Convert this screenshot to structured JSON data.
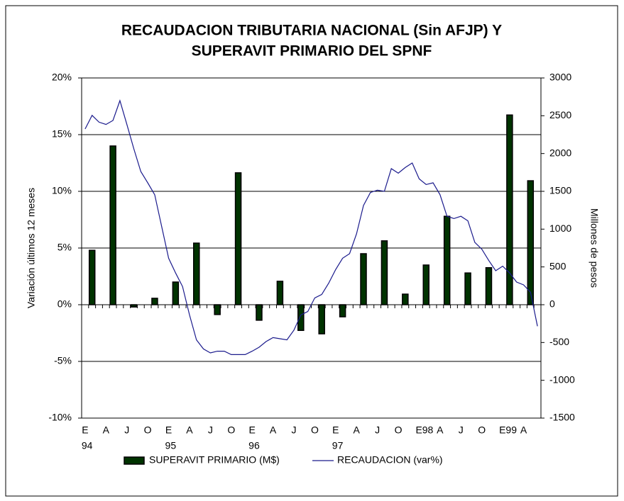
{
  "chart_data": {
    "type": "bar-line",
    "title": [
      "RECAUDACION TRIBUTARIA NACIONAL (Sin AFJP) Y",
      "SUPERAVIT PRIMARIO DEL SPNF"
    ],
    "y_label": "Variación últimos 12 meses",
    "y2_label": "Millones de pesos",
    "categories": [
      "E",
      null,
      null,
      "A",
      null,
      null,
      "J",
      null,
      null,
      "O",
      null,
      null,
      "E",
      null,
      null,
      "A",
      null,
      null,
      "J",
      null,
      null,
      "O",
      null,
      null,
      "E",
      null,
      null,
      "A",
      null,
      null,
      "J",
      null,
      null,
      "O",
      null,
      null,
      "E",
      null,
      null,
      "A",
      null,
      null,
      "J",
      null,
      null,
      "O",
      null,
      null,
      "E98",
      null,
      null,
      "A",
      null,
      null,
      "J",
      null,
      null,
      "O",
      null,
      null,
      "E99",
      null,
      null,
      "A",
      null,
      null
    ],
    "years": [
      "94",
      null,
      null,
      null,
      null,
      null,
      null,
      null,
      null,
      null,
      null,
      null,
      "95",
      null,
      null,
      null,
      null,
      null,
      null,
      null,
      null,
      null,
      null,
      null,
      "96",
      null,
      null,
      null,
      null,
      null,
      null,
      null,
      null,
      null,
      null,
      null,
      "97",
      null,
      null,
      null,
      null,
      null,
      null,
      null,
      null,
      null,
      null,
      null,
      null,
      null,
      null,
      null,
      null,
      null,
      null,
      null,
      null,
      null,
      null,
      null,
      null,
      null,
      null,
      null,
      null,
      null
    ],
    "series": [
      {
        "name": "SUPERAVIT PRIMARIO (M$)",
        "type": "bar",
        "axis": "y2",
        "color": "#003300",
        "values": [
          null,
          720,
          null,
          null,
          2100,
          null,
          null,
          -30,
          null,
          null,
          85,
          null,
          null,
          300,
          null,
          null,
          815,
          null,
          null,
          -130,
          null,
          null,
          1745,
          null,
          null,
          -205,
          null,
          null,
          310,
          null,
          null,
          -340,
          null,
          null,
          -385,
          null,
          null,
          -160,
          null,
          null,
          675,
          null,
          null,
          845,
          null,
          null,
          140,
          null,
          null,
          525,
          null,
          null,
          1170,
          null,
          null,
          420,
          null,
          null,
          490,
          null,
          null,
          2510,
          null,
          null,
          1640,
          null
        ]
      },
      {
        "name": "RECAUDACION (var%)",
        "type": "line",
        "axis": "y",
        "color": "#1a1a8c",
        "values": [
          15.5,
          16.7,
          16.1,
          15.9,
          16.25,
          18.0,
          15.9,
          13.75,
          11.75,
          10.75,
          9.7,
          6.9,
          4.1,
          2.8,
          1.6,
          -0.9,
          -3.1,
          -3.9,
          -4.25,
          -4.1,
          -4.1,
          -4.4,
          -4.4,
          -4.4,
          -4.1,
          -3.75,
          -3.25,
          -2.9,
          -3.0,
          -3.1,
          -2.25,
          -0.9,
          -0.6,
          0.6,
          0.9,
          1.9,
          3.1,
          4.1,
          4.5,
          6.25,
          8.75,
          9.9,
          10.1,
          10.0,
          12.0,
          11.6,
          12.1,
          12.5,
          11.1,
          10.6,
          10.75,
          9.7,
          7.8,
          7.6,
          7.8,
          7.4,
          5.5,
          4.9,
          3.9,
          3.0,
          3.4,
          2.8,
          2.0,
          1.75,
          1.1,
          -1.9
        ]
      }
    ],
    "ylim": [
      -10,
      20
    ],
    "yticks": [
      {
        "value": -10,
        "label": "-10%"
      },
      {
        "value": -5,
        "label": "-5%"
      },
      {
        "value": 0,
        "label": "0%"
      },
      {
        "value": 5,
        "label": "5%"
      },
      {
        "value": 10,
        "label": "10%"
      },
      {
        "value": 15,
        "label": "15%"
      },
      {
        "value": 20,
        "label": "20%"
      }
    ],
    "y2lim": [
      -1500,
      3000
    ],
    "y2ticks": [
      -1500,
      -1000,
      -500,
      0,
      500,
      1000,
      1500,
      2000,
      2500,
      3000
    ],
    "grid": true
  }
}
